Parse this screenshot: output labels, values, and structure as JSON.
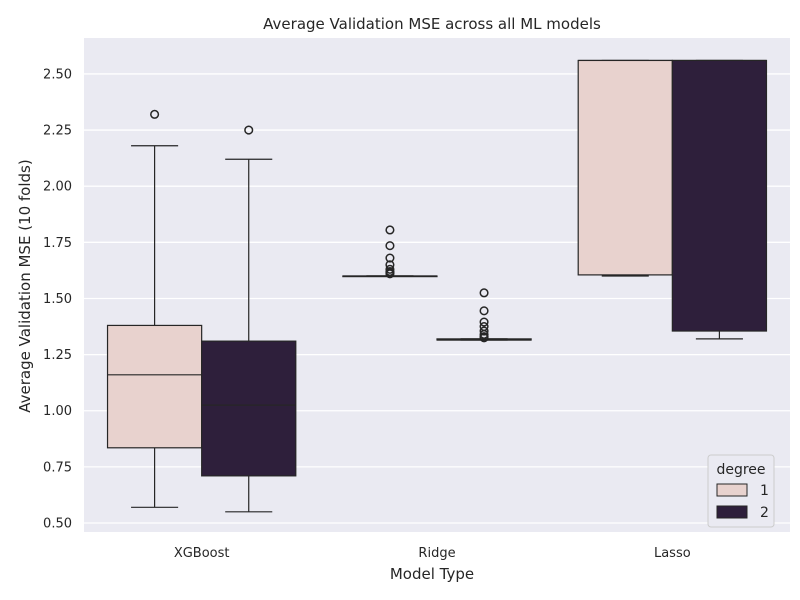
{
  "chart_data": {
    "type": "box",
    "title": "Average Validation MSE across all ML models",
    "xlabel": "Model Type",
    "ylabel": "Average Validation MSE (10 folds)",
    "ylim": [
      0.46,
      2.66
    ],
    "yticks": [
      0.5,
      0.75,
      1.0,
      1.25,
      1.5,
      1.75,
      2.0,
      2.25,
      2.5
    ],
    "ytick_labels": [
      "0.50",
      "0.75",
      "1.00",
      "1.25",
      "1.50",
      "1.75",
      "2.00",
      "2.25",
      "2.50"
    ],
    "categories": [
      "XGBoost",
      "Ridge",
      "Lasso"
    ],
    "grid": true,
    "legend": {
      "title": "degree",
      "position": "bottom-right",
      "entries": [
        "1",
        "2"
      ]
    },
    "colors": {
      "background": "#eaeaf2",
      "grid": "#ffffff",
      "degree_1": "#e8d2ce",
      "degree_2": "#2e1f3b",
      "line": "#262626"
    },
    "series": [
      {
        "name": "1",
        "boxes": [
          {
            "category": "XGBoost",
            "whisker_low": 0.57,
            "q1": 0.835,
            "median": 1.16,
            "q3": 1.38,
            "whisker_high": 2.18,
            "outliers": [
              2.32
            ]
          },
          {
            "category": "Ridge",
            "whisker_low": 1.6,
            "q1": 1.6,
            "median": 1.6,
            "q3": 1.6,
            "whisker_high": 1.6,
            "outliers": [
              1.61,
              1.615,
              1.62,
              1.63,
              1.65,
              1.68,
              1.735,
              1.805
            ]
          },
          {
            "category": "Lasso",
            "whisker_low": 1.6,
            "q1": 1.605,
            "median": 2.56,
            "q3": 2.56,
            "whisker_high": 2.56,
            "outliers": []
          }
        ]
      },
      {
        "name": "2",
        "boxes": [
          {
            "category": "XGBoost",
            "whisker_low": 0.55,
            "q1": 0.71,
            "median": 1.025,
            "q3": 1.31,
            "whisker_high": 2.12,
            "outliers": [
              2.25
            ]
          },
          {
            "category": "Ridge",
            "whisker_low": 1.315,
            "q1": 1.315,
            "median": 1.315,
            "q3": 1.32,
            "whisker_high": 1.32,
            "outliers": [
              1.325,
              1.33,
              1.34,
              1.355,
              1.375,
              1.395,
              1.445,
              1.525
            ]
          },
          {
            "category": "Lasso",
            "whisker_low": 1.32,
            "q1": 1.355,
            "median": 2.56,
            "q3": 2.56,
            "whisker_high": 2.56,
            "outliers": []
          }
        ]
      }
    ]
  }
}
